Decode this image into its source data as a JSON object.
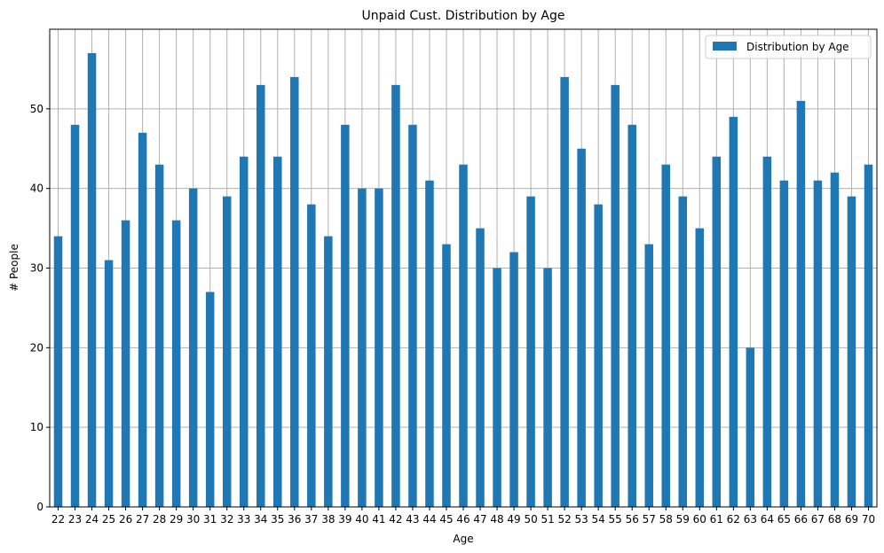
{
  "chart_data": {
    "type": "bar",
    "title": "Unpaid Cust. Distribution by Age",
    "xlabel": "Age",
    "ylabel": "# People",
    "ylim": [
      0,
      60
    ],
    "yticks": [
      0,
      10,
      20,
      30,
      40,
      50
    ],
    "grid": true,
    "legend_position": "top-right",
    "categories": [
      "22",
      "23",
      "24",
      "25",
      "26",
      "27",
      "28",
      "29",
      "30",
      "31",
      "32",
      "33",
      "34",
      "35",
      "36",
      "37",
      "38",
      "39",
      "40",
      "41",
      "42",
      "43",
      "44",
      "45",
      "46",
      "47",
      "48",
      "49",
      "50",
      "51",
      "52",
      "53",
      "54",
      "55",
      "56",
      "57",
      "58",
      "59",
      "60",
      "61",
      "62",
      "63",
      "64",
      "65",
      "66",
      "67",
      "68",
      "69",
      "70"
    ],
    "series": [
      {
        "name": "Distribution by Age",
        "color": "#1f77b4",
        "values": [
          34,
          48,
          57,
          31,
          36,
          47,
          43,
          36,
          40,
          27,
          39,
          44,
          53,
          44,
          54,
          38,
          34,
          48,
          40,
          40,
          53,
          48,
          41,
          33,
          43,
          35,
          30,
          32,
          39,
          30,
          54,
          45,
          38,
          53,
          48,
          33,
          43,
          39,
          35,
          44,
          49,
          20,
          44,
          41,
          51,
          41,
          42,
          39,
          43
        ]
      }
    ]
  }
}
